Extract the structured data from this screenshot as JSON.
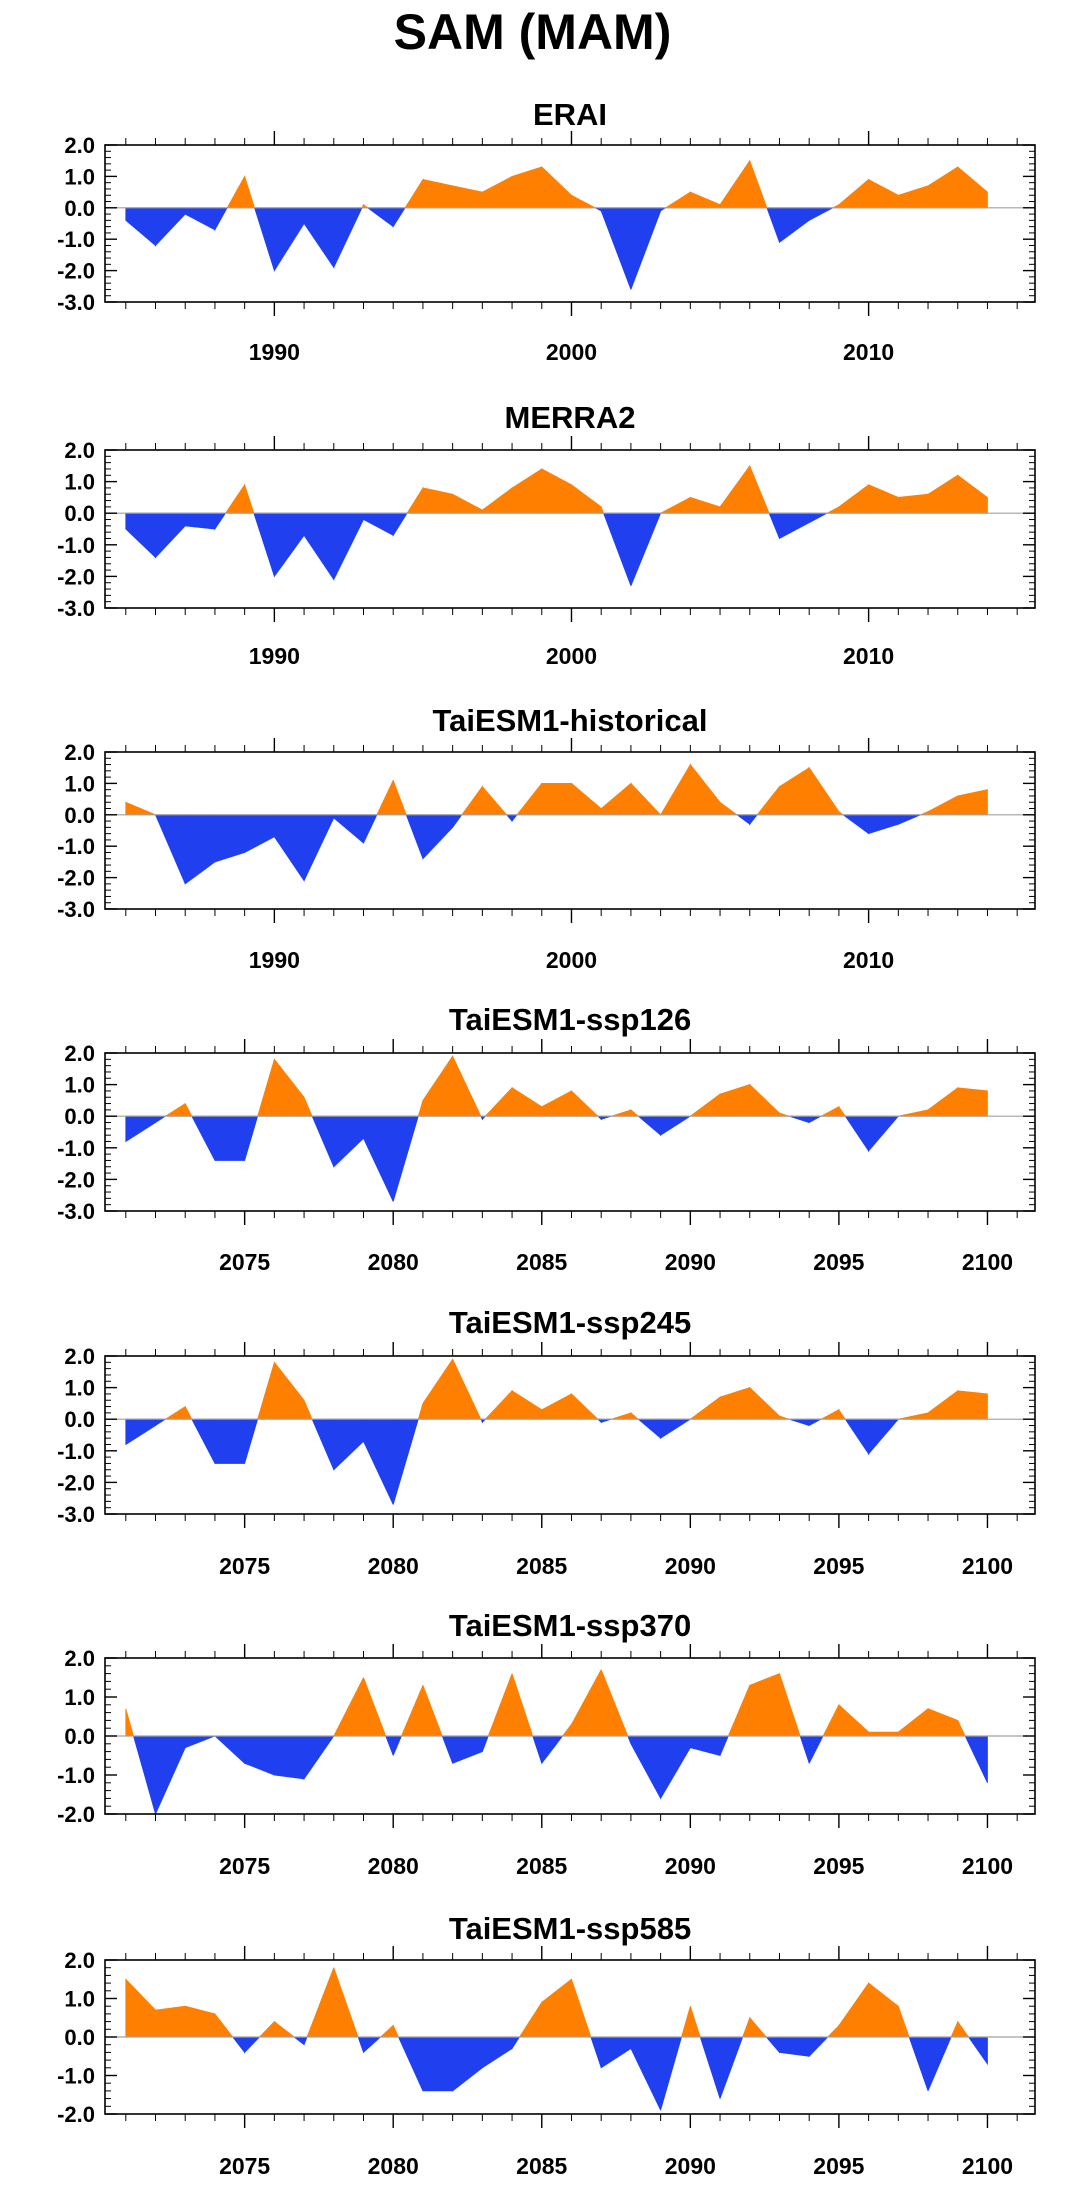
{
  "figure": {
    "title": "SAM (MAM)",
    "colors": {
      "positive": "#ff8000",
      "negative": "#2040f0",
      "axis": "#000000",
      "zero_line": "#a0a0a0"
    }
  },
  "chart_data": [
    {
      "type": "area",
      "title": "ERAI",
      "xlabel": "",
      "ylabel": "",
      "x": [
        1985,
        1986,
        1987,
        1988,
        1989,
        1990,
        1991,
        1992,
        1993,
        1994,
        1995,
        1996,
        1997,
        1998,
        1999,
        2000,
        2001,
        2002,
        2003,
        2004,
        2005,
        2006,
        2007,
        2008,
        2009,
        2010,
        2011,
        2012,
        2013,
        2014
      ],
      "values": [
        -0.4,
        -1.2,
        -0.2,
        -0.7,
        1.0,
        -2.0,
        -0.5,
        -1.9,
        0.1,
        -0.6,
        0.9,
        0.7,
        0.5,
        1.0,
        1.3,
        0.4,
        -0.1,
        -2.6,
        -0.1,
        0.5,
        0.1,
        1.5,
        -1.1,
        -0.4,
        0.1,
        0.9,
        0.4,
        0.7,
        1.3,
        0.5
      ],
      "xlim": [
        1984.3,
        2015.6
      ],
      "ylim": [
        -3.0,
        2.0
      ],
      "yticks": [
        2.0,
        1.0,
        0.0,
        -1.0,
        -2.0,
        -3.0
      ],
      "ytick_labels": [
        "2.0",
        "1.0",
        "0.0",
        "-1.0",
        "-2.0",
        "-3.0"
      ],
      "xticks": [
        1990,
        2000,
        2010
      ],
      "xtick_labels": [
        "1990",
        "2000",
        "2010"
      ],
      "xminor": 1,
      "grid": false
    },
    {
      "type": "area",
      "title": "MERRA2",
      "xlabel": "",
      "ylabel": "",
      "x": [
        1985,
        1986,
        1987,
        1988,
        1989,
        1990,
        1991,
        1992,
        1993,
        1994,
        1995,
        1996,
        1997,
        1998,
        1999,
        2000,
        2001,
        2002,
        2003,
        2004,
        2005,
        2006,
        2007,
        2008,
        2009,
        2010,
        2011,
        2012,
        2013,
        2014
      ],
      "values": [
        -0.5,
        -1.4,
        -0.4,
        -0.5,
        0.9,
        -2.0,
        -0.7,
        -2.1,
        -0.2,
        -0.7,
        0.8,
        0.6,
        0.1,
        0.8,
        1.4,
        0.9,
        0.2,
        -2.3,
        0.0,
        0.5,
        0.2,
        1.5,
        -0.8,
        -0.3,
        0.2,
        0.9,
        0.5,
        0.6,
        1.2,
        0.5
      ],
      "xlim": [
        1984.3,
        2015.6
      ],
      "ylim": [
        -3.0,
        2.0
      ],
      "yticks": [
        2.0,
        1.0,
        0.0,
        -1.0,
        -2.0,
        -3.0
      ],
      "ytick_labels": [
        "2.0",
        "1.0",
        "0.0",
        "-1.0",
        "-2.0",
        "-3.0"
      ],
      "xticks": [
        1990,
        2000,
        2010
      ],
      "xtick_labels": [
        "1990",
        "2000",
        "2010"
      ],
      "xminor": 1,
      "grid": false
    },
    {
      "type": "area",
      "title": "TaiESM1-historical",
      "xlabel": "",
      "ylabel": "",
      "x": [
        1985,
        1986,
        1987,
        1988,
        1989,
        1990,
        1991,
        1992,
        1993,
        1994,
        1995,
        1996,
        1997,
        1998,
        1999,
        2000,
        2001,
        2002,
        2003,
        2004,
        2005,
        2006,
        2007,
        2008,
        2009,
        2010,
        2011,
        2012,
        2013,
        2014
      ],
      "values": [
        0.4,
        0.0,
        -2.2,
        -1.5,
        -1.2,
        -0.7,
        -2.1,
        -0.1,
        -0.9,
        1.1,
        -1.4,
        -0.4,
        0.9,
        -0.2,
        1.0,
        1.0,
        0.2,
        1.0,
        0.0,
        1.6,
        0.4,
        -0.3,
        0.9,
        1.5,
        0.1,
        -0.6,
        -0.3,
        0.1,
        0.6,
        0.8
      ],
      "xlim": [
        1984.3,
        2015.6
      ],
      "ylim": [
        -3.0,
        2.0
      ],
      "yticks": [
        2.0,
        1.0,
        0.0,
        -1.0,
        -2.0,
        -3.0
      ],
      "ytick_labels": [
        "2.0",
        "1.0",
        "0.0",
        "-1.0",
        "-2.0",
        "-3.0"
      ],
      "xticks": [
        1990,
        2000,
        2010
      ],
      "xtick_labels": [
        "1990",
        "2000",
        "2010"
      ],
      "xminor": 1,
      "grid": false
    },
    {
      "type": "area",
      "title": "TaiESM1-ssp126",
      "xlabel": "",
      "ylabel": "",
      "x": [
        2071,
        2072,
        2073,
        2074,
        2075,
        2076,
        2077,
        2078,
        2079,
        2080,
        2081,
        2082,
        2083,
        2084,
        2085,
        2086,
        2087,
        2088,
        2089,
        2090,
        2091,
        2092,
        2093,
        2094,
        2095,
        2096,
        2097,
        2098,
        2099,
        2100
      ],
      "values": [
        -0.8,
        -0.2,
        0.4,
        -1.4,
        -1.4,
        1.8,
        0.6,
        -1.6,
        -0.7,
        -2.7,
        0.5,
        1.9,
        -0.1,
        0.9,
        0.3,
        0.8,
        -0.1,
        0.2,
        -0.6,
        0.0,
        0.7,
        1.0,
        0.1,
        -0.2,
        0.3,
        -1.1,
        0.0,
        0.2,
        0.9,
        0.8
      ],
      "xlim": [
        2070.3,
        2101.6
      ],
      "ylim": [
        -3.0,
        2.0
      ],
      "yticks": [
        2.0,
        1.0,
        0.0,
        -1.0,
        -2.0,
        -3.0
      ],
      "ytick_labels": [
        "2.0",
        "1.0",
        "0.0",
        "-1.0",
        "-2.0",
        "-3.0"
      ],
      "xticks": [
        2075,
        2080,
        2085,
        2090,
        2095,
        2100
      ],
      "xtick_labels": [
        "2075",
        "2080",
        "2085",
        "2090",
        "2095",
        "2100"
      ],
      "xminor": 1,
      "grid": false
    },
    {
      "type": "area",
      "title": "TaiESM1-ssp245",
      "xlabel": "",
      "ylabel": "",
      "x": [
        2071,
        2072,
        2073,
        2074,
        2075,
        2076,
        2077,
        2078,
        2079,
        2080,
        2081,
        2082,
        2083,
        2084,
        2085,
        2086,
        2087,
        2088,
        2089,
        2090,
        2091,
        2092,
        2093,
        2094,
        2095,
        2096,
        2097,
        2098,
        2099,
        2100
      ],
      "values": [
        -0.8,
        -0.2,
        0.4,
        -1.4,
        -1.4,
        1.8,
        0.6,
        -1.6,
        -0.7,
        -2.7,
        0.5,
        1.9,
        -0.1,
        0.9,
        0.3,
        0.8,
        -0.1,
        0.2,
        -0.6,
        0.0,
        0.7,
        1.0,
        0.1,
        -0.2,
        0.3,
        -1.1,
        0.0,
        0.2,
        0.9,
        0.8
      ],
      "xlim": [
        2070.3,
        2101.6
      ],
      "ylim": [
        -3.0,
        2.0
      ],
      "yticks": [
        2.0,
        1.0,
        0.0,
        -1.0,
        -2.0,
        -3.0
      ],
      "ytick_labels": [
        "2.0",
        "1.0",
        "0.0",
        "-1.0",
        "-2.0",
        "-3.0"
      ],
      "xticks": [
        2075,
        2080,
        2085,
        2090,
        2095,
        2100
      ],
      "xtick_labels": [
        "2075",
        "2080",
        "2085",
        "2090",
        "2095",
        "2100"
      ],
      "xminor": 1,
      "grid": false
    },
    {
      "type": "area",
      "title": "TaiESM1-ssp370",
      "xlabel": "",
      "ylabel": "",
      "x": [
        2071,
        2072,
        2073,
        2074,
        2075,
        2076,
        2077,
        2078,
        2079,
        2080,
        2081,
        2082,
        2083,
        2084,
        2085,
        2086,
        2087,
        2088,
        2089,
        2090,
        2091,
        2092,
        2093,
        2094,
        2095,
        2096,
        2097,
        2098,
        2099,
        2100
      ],
      "values": [
        0.7,
        -2.0,
        -0.3,
        0.0,
        -0.7,
        -1.0,
        -1.1,
        0.0,
        1.5,
        -0.5,
        1.3,
        -0.7,
        -0.4,
        1.6,
        -0.7,
        0.3,
        1.7,
        -0.2,
        -1.6,
        -0.3,
        -0.5,
        1.3,
        1.6,
        -0.7,
        0.8,
        0.1,
        0.1,
        0.7,
        0.4,
        -1.2
      ],
      "xlim": [
        2070.3,
        2101.6
      ],
      "ylim": [
        -2.0,
        2.0
      ],
      "yticks": [
        2.0,
        1.0,
        0.0,
        -1.0,
        -2.0
      ],
      "ytick_labels": [
        "2.0",
        "1.0",
        "0.0",
        "-1.0",
        "-2.0"
      ],
      "xticks": [
        2075,
        2080,
        2085,
        2090,
        2095,
        2100
      ],
      "xtick_labels": [
        "2075",
        "2080",
        "2085",
        "2090",
        "2095",
        "2100"
      ],
      "xminor": 1,
      "grid": false
    },
    {
      "type": "area",
      "title": "TaiESM1-ssp585",
      "xlabel": "",
      "ylabel": "",
      "x": [
        2071,
        2072,
        2073,
        2074,
        2075,
        2076,
        2077,
        2078,
        2079,
        2080,
        2081,
        2082,
        2083,
        2084,
        2085,
        2086,
        2087,
        2088,
        2089,
        2090,
        2091,
        2092,
        2093,
        2094,
        2095,
        2096,
        2097,
        2098,
        2099,
        2100
      ],
      "values": [
        1.5,
        0.7,
        0.8,
        0.6,
        -0.4,
        0.4,
        -0.2,
        1.8,
        -0.4,
        0.3,
        -1.4,
        -1.4,
        -0.8,
        -0.3,
        0.9,
        1.5,
        -0.8,
        -0.3,
        -1.9,
        0.8,
        -1.6,
        0.5,
        -0.4,
        -0.5,
        0.3,
        1.4,
        0.8,
        -1.4,
        0.4,
        -0.7
      ],
      "xlim": [
        2070.3,
        2101.6
      ],
      "ylim": [
        -2.0,
        2.0
      ],
      "yticks": [
        2.0,
        1.0,
        0.0,
        -1.0,
        -2.0
      ],
      "ytick_labels": [
        "2.0",
        "1.0",
        "0.0",
        "-1.0",
        "-2.0"
      ],
      "xticks": [
        2075,
        2080,
        2085,
        2090,
        2095,
        2100
      ],
      "xtick_labels": [
        "2075",
        "2080",
        "2085",
        "2090",
        "2095",
        "2100"
      ],
      "xminor": 1,
      "grid": false
    }
  ]
}
